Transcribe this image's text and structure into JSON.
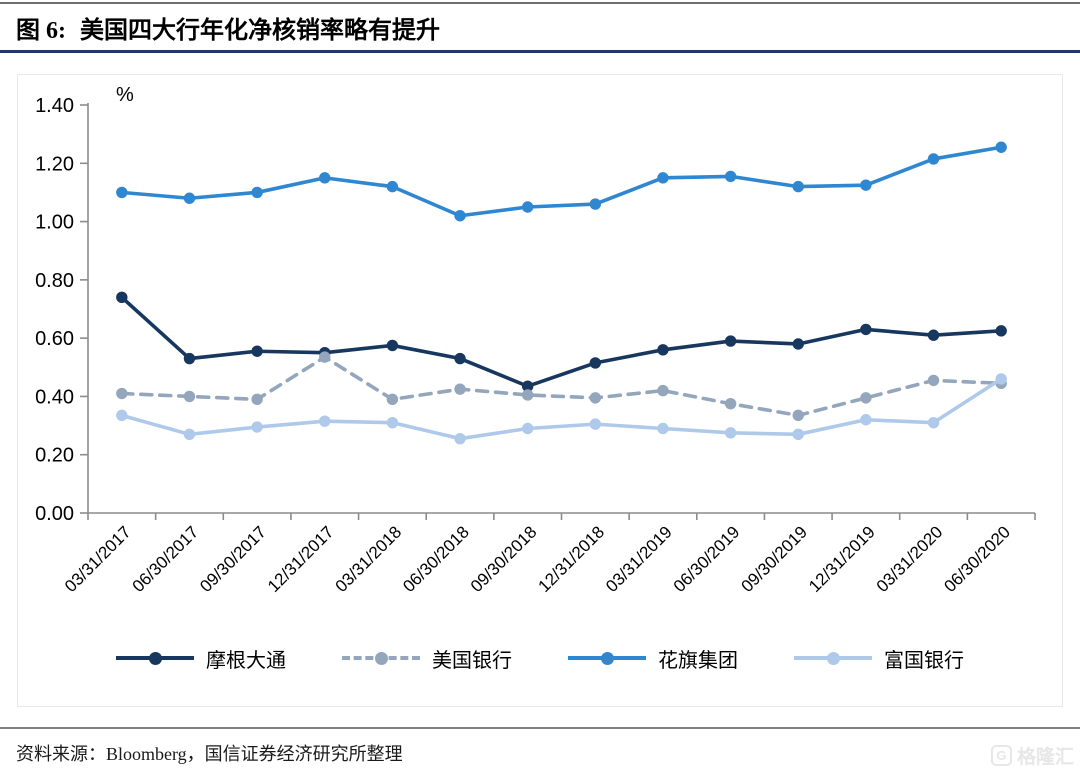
{
  "page": {
    "background": "#FFFFFF"
  },
  "header": {
    "figure_label": "图 6:",
    "title": "美国四大行年化净核销率略有提升",
    "underline_color": "#1F3864"
  },
  "chart_data": {
    "type": "line",
    "title": "美国四大行年化净核销率略有提升",
    "xlabel": "",
    "ylabel": "%",
    "ylim": [
      0,
      1.4
    ],
    "y_tick_step": 0.2,
    "y_ticks": [
      "0.00",
      "0.20",
      "0.40",
      "0.60",
      "0.80",
      "1.00",
      "1.20",
      "1.40"
    ],
    "grid": false,
    "legend_position": "bottom",
    "axis_color": "#8C8C8C",
    "categories": [
      "03/31/2017",
      "06/30/2017",
      "09/30/2017",
      "12/31/2017",
      "03/31/2018",
      "06/30/2018",
      "09/30/2018",
      "12/31/2018",
      "03/31/2019",
      "06/30/2019",
      "09/30/2019",
      "12/31/2019",
      "03/31/2020",
      "06/30/2020"
    ],
    "series": [
      {
        "name": "摩根大通",
        "color": "#17375E",
        "dash": "solid",
        "values": [
          0.74,
          0.53,
          0.555,
          0.55,
          0.575,
          0.53,
          0.435,
          0.515,
          0.56,
          0.59,
          0.58,
          0.63,
          0.61,
          0.625
        ]
      },
      {
        "name": "美国银行",
        "color": "#94A6BC",
        "dash": "dashed",
        "values": [
          0.41,
          0.4,
          0.39,
          0.535,
          0.39,
          0.425,
          0.405,
          0.395,
          0.42,
          0.375,
          0.335,
          0.395,
          0.455,
          0.445
        ]
      },
      {
        "name": "花旗集团",
        "color": "#2F87D2",
        "dash": "solid",
        "values": [
          1.1,
          1.08,
          1.1,
          1.15,
          1.12,
          1.02,
          1.05,
          1.06,
          1.15,
          1.155,
          1.12,
          1.125,
          1.215,
          1.255
        ]
      },
      {
        "name": "富国银行",
        "color": "#AEC9EA",
        "dash": "solid",
        "values": [
          0.335,
          0.27,
          0.295,
          0.315,
          0.31,
          0.255,
          0.29,
          0.305,
          0.29,
          0.275,
          0.27,
          0.32,
          0.31,
          0.46
        ]
      }
    ]
  },
  "footer": {
    "source_text": "资料来源：Bloomberg，国信证券经济研究所整理",
    "rule_color": "#808080"
  },
  "watermark": {
    "icon": "G",
    "text": "格隆汇"
  }
}
